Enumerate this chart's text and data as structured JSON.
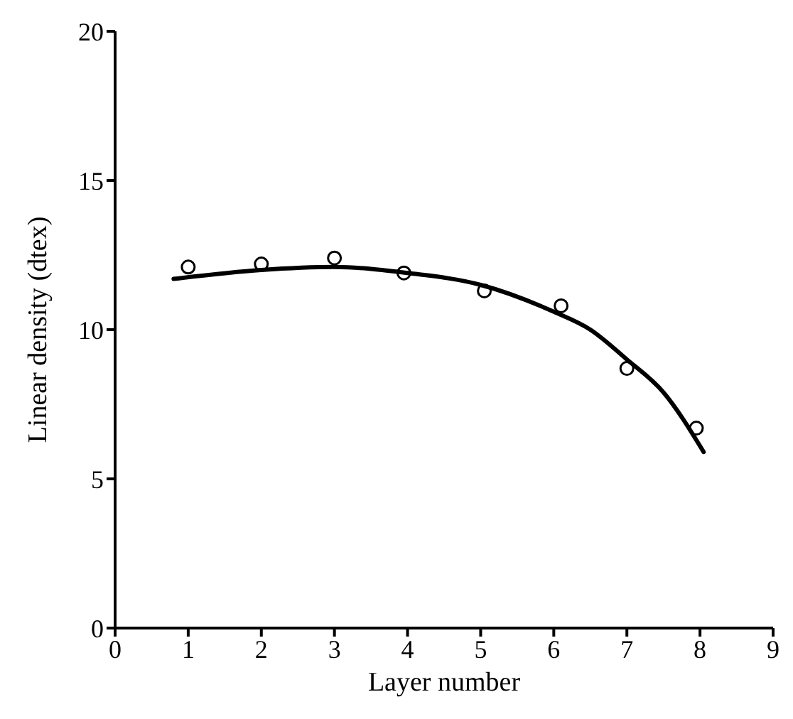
{
  "chart_data": {
    "type": "scatter",
    "xlabel": "Layer number",
    "ylabel": "Linear density (dtex)",
    "xlim": [
      0,
      9
    ],
    "xticks": [
      0,
      1,
      2,
      3,
      4,
      5,
      6,
      7,
      8,
      9
    ],
    "ylim": [
      0,
      20
    ],
    "yticks": [
      0,
      5,
      10,
      15,
      20
    ],
    "marker": "circle",
    "series": [
      {
        "color": "#000000",
        "x": [
          1,
          2,
          3,
          3.95,
          5.05,
          6.1,
          7,
          7.95
        ],
        "values": [
          12.1,
          12.2,
          12.4,
          11.9,
          11.3,
          10.8,
          8.7,
          6.7
        ]
      },
      {
        "type": "line",
        "color": "#000000",
        "marker": "none",
        "line_style": "solid",
        "x": [
          0.8,
          2,
          3,
          4,
          5,
          6,
          6.5,
          7,
          7.5,
          8.05
        ],
        "values": [
          11.7,
          12,
          12.1,
          11.9,
          11.5,
          10.6,
          10,
          9,
          7.9,
          5.9
        ]
      }
    ]
  }
}
